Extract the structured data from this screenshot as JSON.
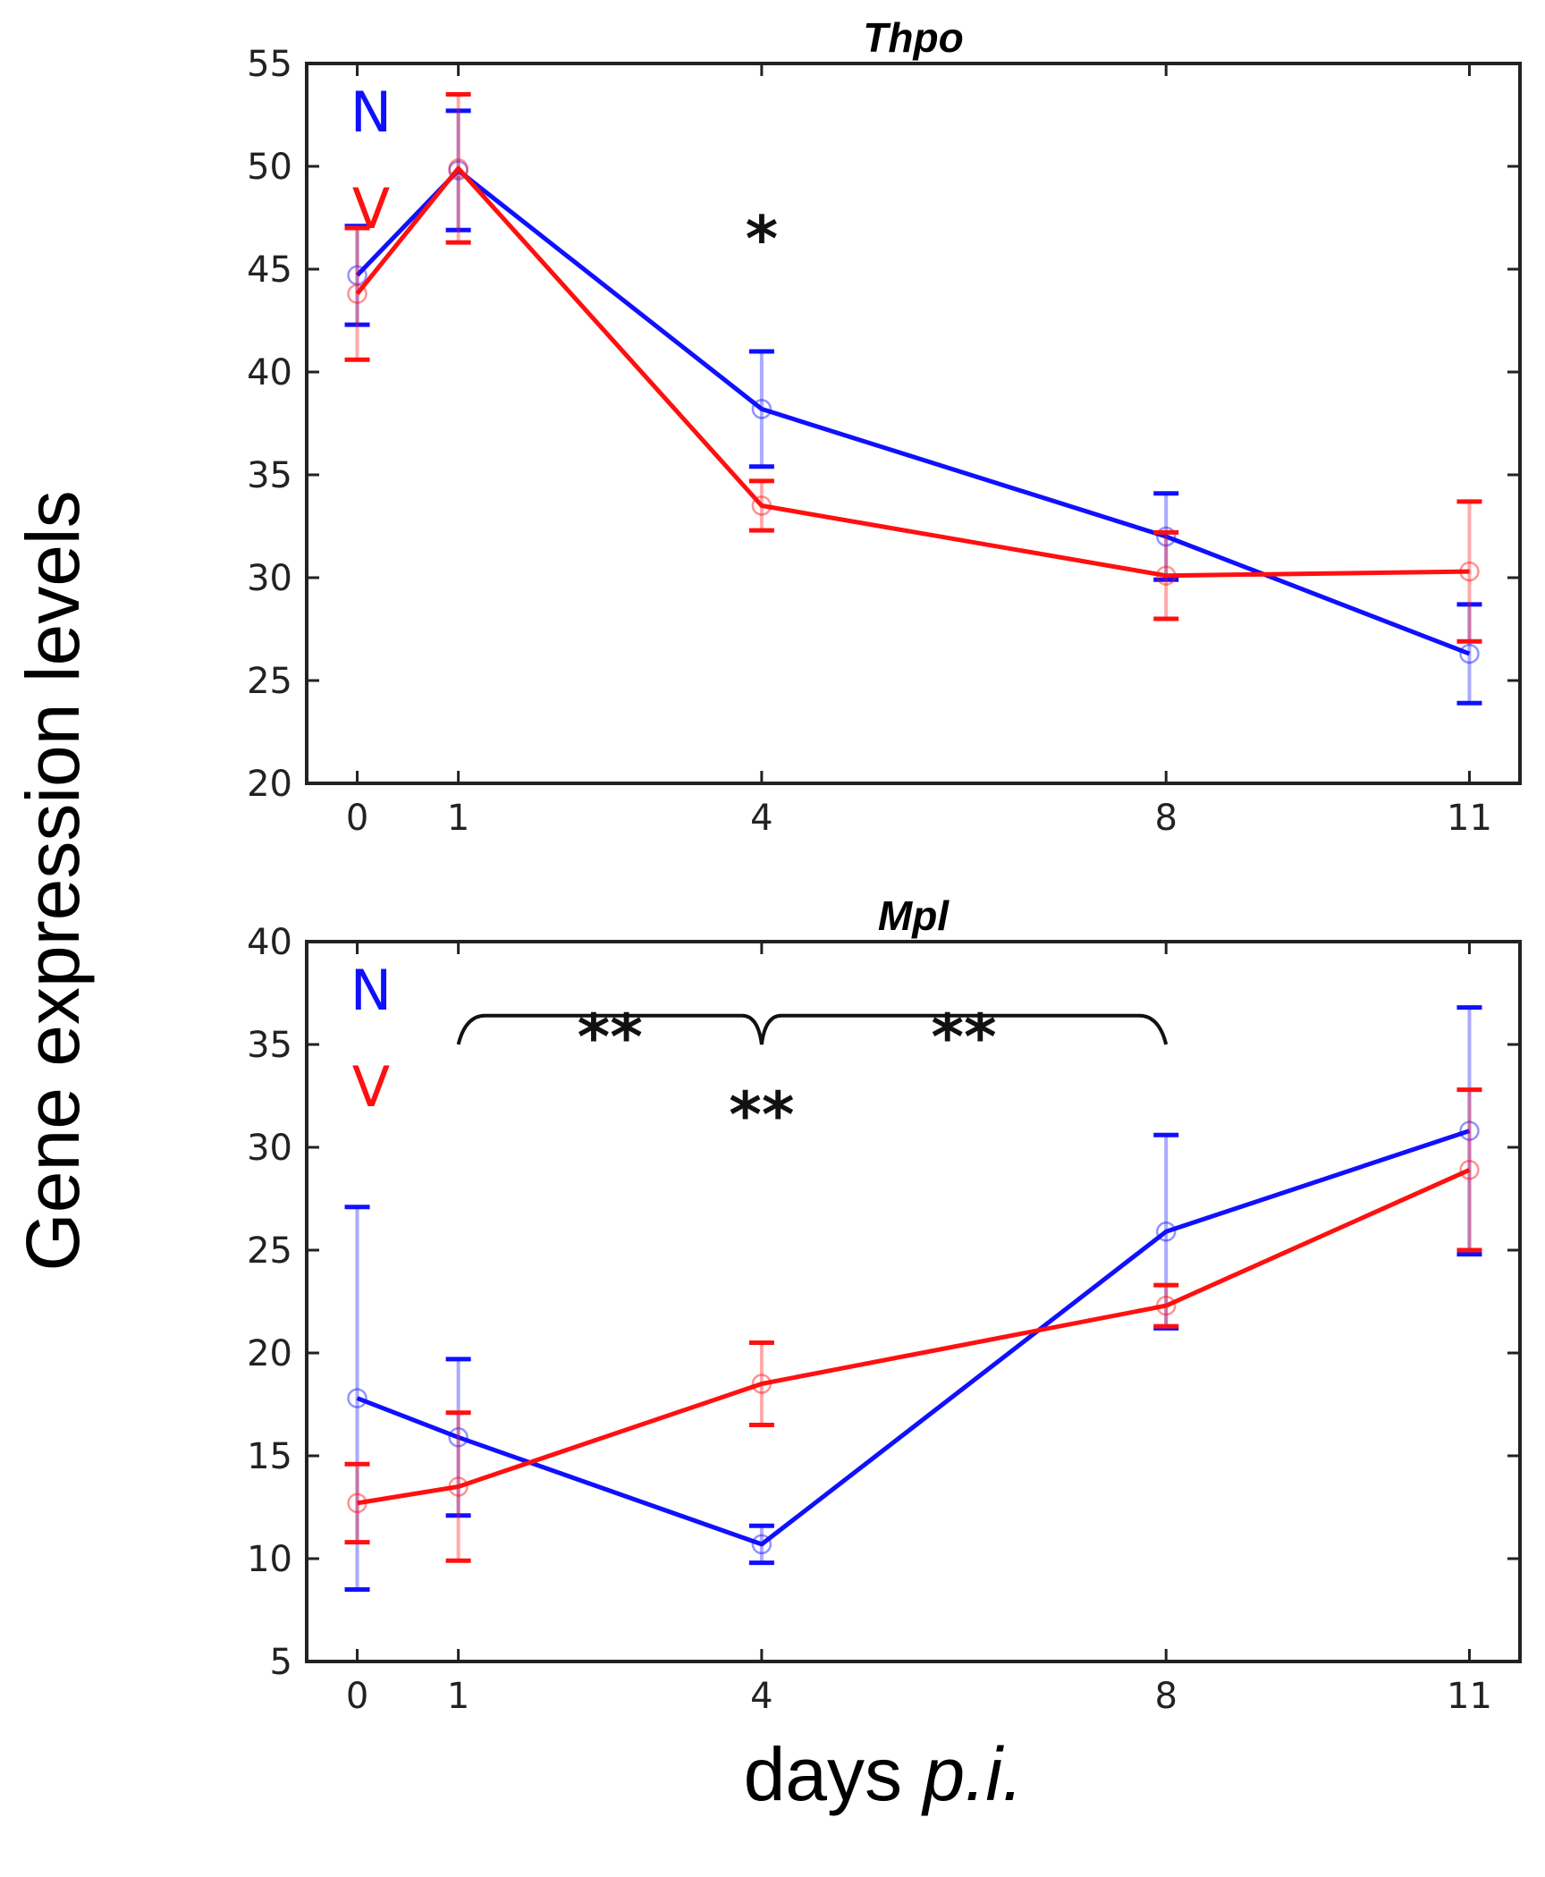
{
  "figure": {
    "ylabel": "Gene expression levels",
    "xlabel_prefix": "days ",
    "xlabel_italic": "p.i."
  },
  "colors": {
    "N": "#1010ff",
    "V": "#ff1010",
    "axis": "#222222",
    "bracket": "#111111"
  },
  "chart_data": [
    {
      "type": "line",
      "title": "Thpo",
      "x": [
        0,
        1,
        4,
        8,
        11
      ],
      "xticks": [
        0,
        1,
        4,
        8,
        11
      ],
      "xlim": [
        -0.5,
        11.5
      ],
      "ylim": [
        20,
        55
      ],
      "yticks": [
        20,
        25,
        30,
        35,
        40,
        45,
        50,
        55
      ],
      "grid": false,
      "legend": [
        {
          "label": "N",
          "color": "#1010ff"
        },
        {
          "label": "V",
          "color": "#ff1010"
        }
      ],
      "series": [
        {
          "name": "N",
          "color": "#1010ff",
          "values": [
            44.7,
            49.8,
            38.2,
            32.0,
            26.3
          ],
          "errors": [
            2.4,
            2.9,
            2.8,
            2.1,
            2.4
          ]
        },
        {
          "name": "V",
          "color": "#ff1010",
          "values": [
            43.8,
            49.9,
            33.5,
            30.1,
            30.3
          ],
          "errors": [
            3.2,
            3.6,
            1.2,
            2.1,
            3.4
          ]
        }
      ],
      "annotations": [
        {
          "text": "*",
          "x": 4,
          "y": 47.5
        }
      ],
      "brackets": []
    },
    {
      "type": "line",
      "title": "Mpl",
      "x": [
        0,
        1,
        4,
        8,
        11
      ],
      "xticks": [
        0,
        1,
        4,
        8,
        11
      ],
      "xlim": [
        -0.5,
        11.5
      ],
      "ylim": [
        5,
        40
      ],
      "yticks": [
        5,
        10,
        15,
        20,
        25,
        30,
        35,
        40
      ],
      "grid": false,
      "legend": [
        {
          "label": "N",
          "color": "#1010ff"
        },
        {
          "label": "V",
          "color": "#ff1010"
        }
      ],
      "series": [
        {
          "name": "N",
          "color": "#1010ff",
          "values": [
            17.8,
            15.9,
            10.7,
            25.9,
            30.8
          ],
          "errors": [
            9.3,
            3.8,
            0.9,
            4.7,
            6.0
          ]
        },
        {
          "name": "V",
          "color": "#ff1010",
          "values": [
            12.7,
            13.5,
            18.5,
            22.3,
            28.9
          ],
          "errors": [
            1.9,
            3.6,
            2.0,
            1.0,
            3.9
          ]
        }
      ],
      "annotations": [
        {
          "text": "**",
          "x": 2.5,
          "y": 36.4
        },
        {
          "text": "**",
          "x": 6.0,
          "y": 36.4
        },
        {
          "text": "**",
          "x": 4,
          "y": 32.6
        }
      ],
      "brackets": [
        {
          "x_from": 1,
          "x_to": 8,
          "mid_x": 4,
          "y": 36.4,
          "tip": 35.0
        }
      ]
    }
  ]
}
